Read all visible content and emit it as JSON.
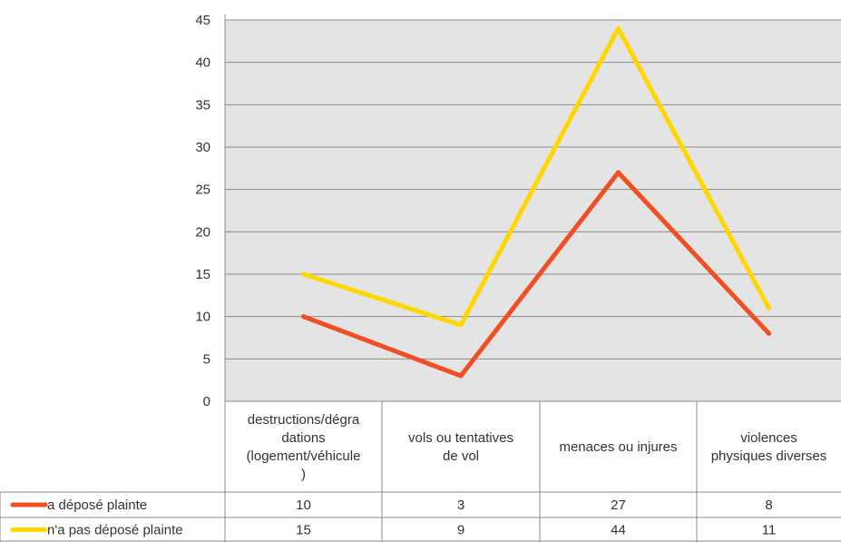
{
  "chart_data": {
    "type": "line",
    "categories": [
      [
        "destructions/dégra",
        "dations",
        "(logement/véhicule",
        ")"
      ],
      [
        "vols ou tentatives",
        "de vol"
      ],
      [
        "menaces ou injures"
      ],
      [
        "violences",
        "physiques diverses"
      ]
    ],
    "series": [
      {
        "name": "a déposé plainte",
        "values": [
          10,
          3,
          27,
          8
        ],
        "color": "#f04e23"
      },
      {
        "name": "n'a pas déposé plainte",
        "values": [
          15,
          9,
          44,
          11
        ],
        "color": "#ffd700"
      }
    ],
    "ylim": [
      0,
      45
    ],
    "yticks": [
      0,
      5,
      10,
      15,
      20,
      25,
      30,
      35,
      40,
      45
    ],
    "grid": true,
    "legend": "data-table",
    "plot_background": "#e4e4e4"
  }
}
